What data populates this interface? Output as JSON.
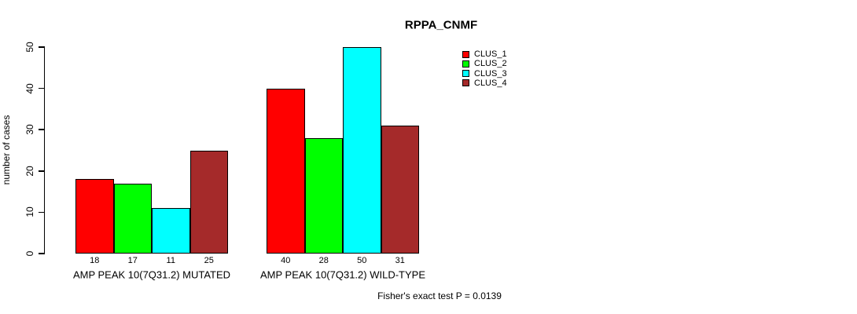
{
  "chart_data": {
    "type": "bar",
    "title": "RPPA_CNMF",
    "xlabel": "",
    "ylabel": "number of cases",
    "ylim": [
      0,
      50
    ],
    "yticks": [
      0,
      10,
      20,
      30,
      40,
      50
    ],
    "categories": [
      "AMP PEAK 10(7Q31.2) MUTATED",
      "AMP PEAK 10(7Q31.2) WILD-TYPE"
    ],
    "series": [
      {
        "name": "CLUS_1",
        "color": "#FF0000",
        "values": [
          18,
          40
        ]
      },
      {
        "name": "CLUS_2",
        "color": "#00FF00",
        "values": [
          17,
          28
        ]
      },
      {
        "name": "CLUS_3",
        "color": "#00FFFF",
        "values": [
          11,
          50
        ]
      },
      {
        "name": "CLUS_4",
        "color": "#A52A2A",
        "values": [
          25,
          31
        ]
      }
    ],
    "bar_value_labels": [
      [
        18,
        17,
        11,
        25
      ],
      [
        40,
        28,
        50,
        31
      ]
    ],
    "legend_position": "top-right",
    "grid": false,
    "annotation": "Fisher's exact test P = 0.0139",
    "axis_color": "#000000",
    "background_color": "#FFFFFF"
  }
}
